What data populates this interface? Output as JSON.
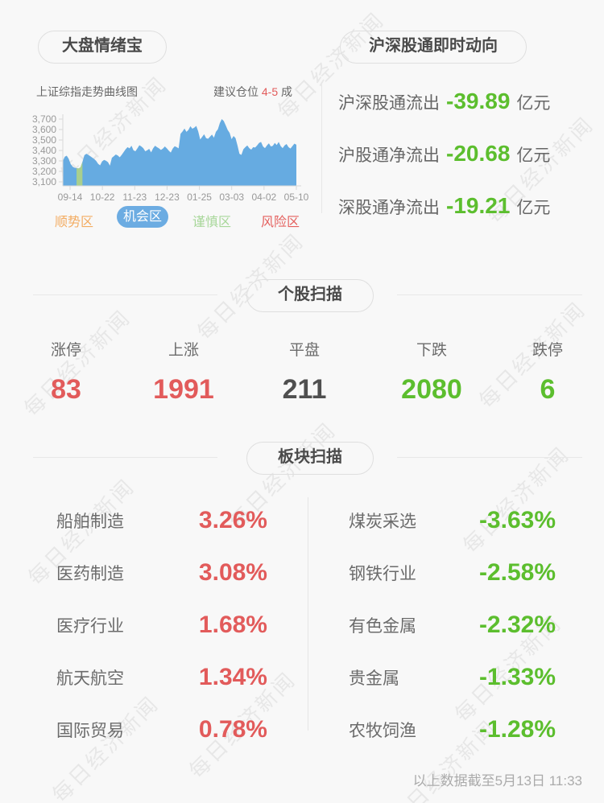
{
  "watermark": {
    "text": "每日经济新闻"
  },
  "sentiment": {
    "title": "大盘情绪宝",
    "chart_title": "上证综指走势曲线图",
    "advice_prefix": "建议仓位",
    "advice_value": "4-5",
    "advice_suffix": "成",
    "legend": [
      {
        "label": "顺势区",
        "color": "#F3AC62",
        "active": false
      },
      {
        "label": "机会区",
        "color": "#6CACE2",
        "active": true
      },
      {
        "label": "谨慎区",
        "color": "#A8D79A",
        "active": false
      },
      {
        "label": "风险区",
        "color": "#E4605E",
        "active": false
      }
    ]
  },
  "chart_data": {
    "type": "area",
    "title": "上证综指走势曲线图",
    "x_tick_labels": [
      "09-14",
      "10-22",
      "11-23",
      "12-23",
      "01-25",
      "03-03",
      "04-02",
      "05-10"
    ],
    "y_tick_labels": [
      "3,700",
      "3,600",
      "3,500",
      "3,400",
      "3,300",
      "3,200",
      "3,100"
    ],
    "ylim": [
      3100,
      3700
    ],
    "area_color": "#66ABE1",
    "axis_color": "#D9D9D9",
    "tick_label_color": "#999999",
    "highlight_band_color": "#A9CF8E",
    "highlight_band_index_range": [
      7,
      10
    ],
    "values": [
      3300,
      3340,
      3350,
      3320,
      3270,
      3245,
      3235,
      3232,
      3228,
      3238,
      3290,
      3355,
      3368,
      3358,
      3345,
      3332,
      3318,
      3300,
      3272,
      3258,
      3295,
      3310,
      3302,
      3288,
      3255,
      3330,
      3345,
      3362,
      3352,
      3335,
      3358,
      3385,
      3412,
      3432,
      3420,
      3445,
      3402,
      3392,
      3420,
      3450,
      3438,
      3422,
      3392,
      3402,
      3415,
      3382,
      3420,
      3445,
      3432,
      3420,
      3405,
      3418,
      3438,
      3420,
      3398,
      3380,
      3418,
      3440,
      3432,
      3420,
      3560,
      3582,
      3610,
      3578,
      3596,
      3632,
      3608,
      3618,
      3635,
      3582,
      3505,
      3530,
      3555,
      3518,
      3512,
      3532,
      3552,
      3522,
      3578,
      3602,
      3662,
      3700,
      3682,
      3640,
      3596,
      3568,
      3508,
      3538,
      3518,
      3448,
      3368,
      3358,
      3412,
      3432,
      3448,
      3422,
      3408,
      3432,
      3428,
      3448,
      3472,
      3482,
      3438,
      3422,
      3448,
      3468,
      3438,
      3444,
      3472,
      3452,
      3482,
      3442,
      3422,
      3448,
      3462,
      3432,
      3418,
      3442,
      3465,
      3455
    ]
  },
  "northbound": {
    "title": "沪深股通即时动向",
    "value_color": "#5CBE2E",
    "rows": [
      {
        "label": "沪深股通流出",
        "value": "-39.89",
        "unit": "亿元"
      },
      {
        "label": "沪股通净流出",
        "value": "-20.68",
        "unit": "亿元"
      },
      {
        "label": "深股通净流出",
        "value": "-19.21",
        "unit": "亿元"
      }
    ]
  },
  "stock_scan": {
    "title": "个股扫描",
    "items": [
      {
        "label": "涨停",
        "value": "83",
        "color": "#E25B5B"
      },
      {
        "label": "上涨",
        "value": "1991",
        "color": "#E25B5B"
      },
      {
        "label": "平盘",
        "value": "211",
        "color": "#4F4F4F"
      },
      {
        "label": "下跌",
        "value": "2080",
        "color": "#5CBE2E"
      },
      {
        "label": "跌停",
        "value": "6",
        "color": "#5CBE2E"
      }
    ]
  },
  "sector_scan": {
    "title": "板块扫描",
    "up_color": "#E25B5B",
    "down_color": "#5CBE2E",
    "gainers": [
      {
        "label": "船舶制造",
        "value": "3.26%"
      },
      {
        "label": "医药制造",
        "value": "3.08%"
      },
      {
        "label": "医疗行业",
        "value": "1.68%"
      },
      {
        "label": "航天航空",
        "value": "1.34%"
      },
      {
        "label": "国际贸易",
        "value": "0.78%"
      }
    ],
    "losers": [
      {
        "label": "煤炭采选",
        "value": "-3.63%"
      },
      {
        "label": "钢铁行业",
        "value": "-2.58%"
      },
      {
        "label": "有色金属",
        "value": "-2.32%"
      },
      {
        "label": "贵金属",
        "value": "-1.33%"
      },
      {
        "label": "农牧饲渔",
        "value": "-1.28%"
      }
    ]
  },
  "footer": {
    "note": "以上数据截至5月13日 11:33"
  }
}
